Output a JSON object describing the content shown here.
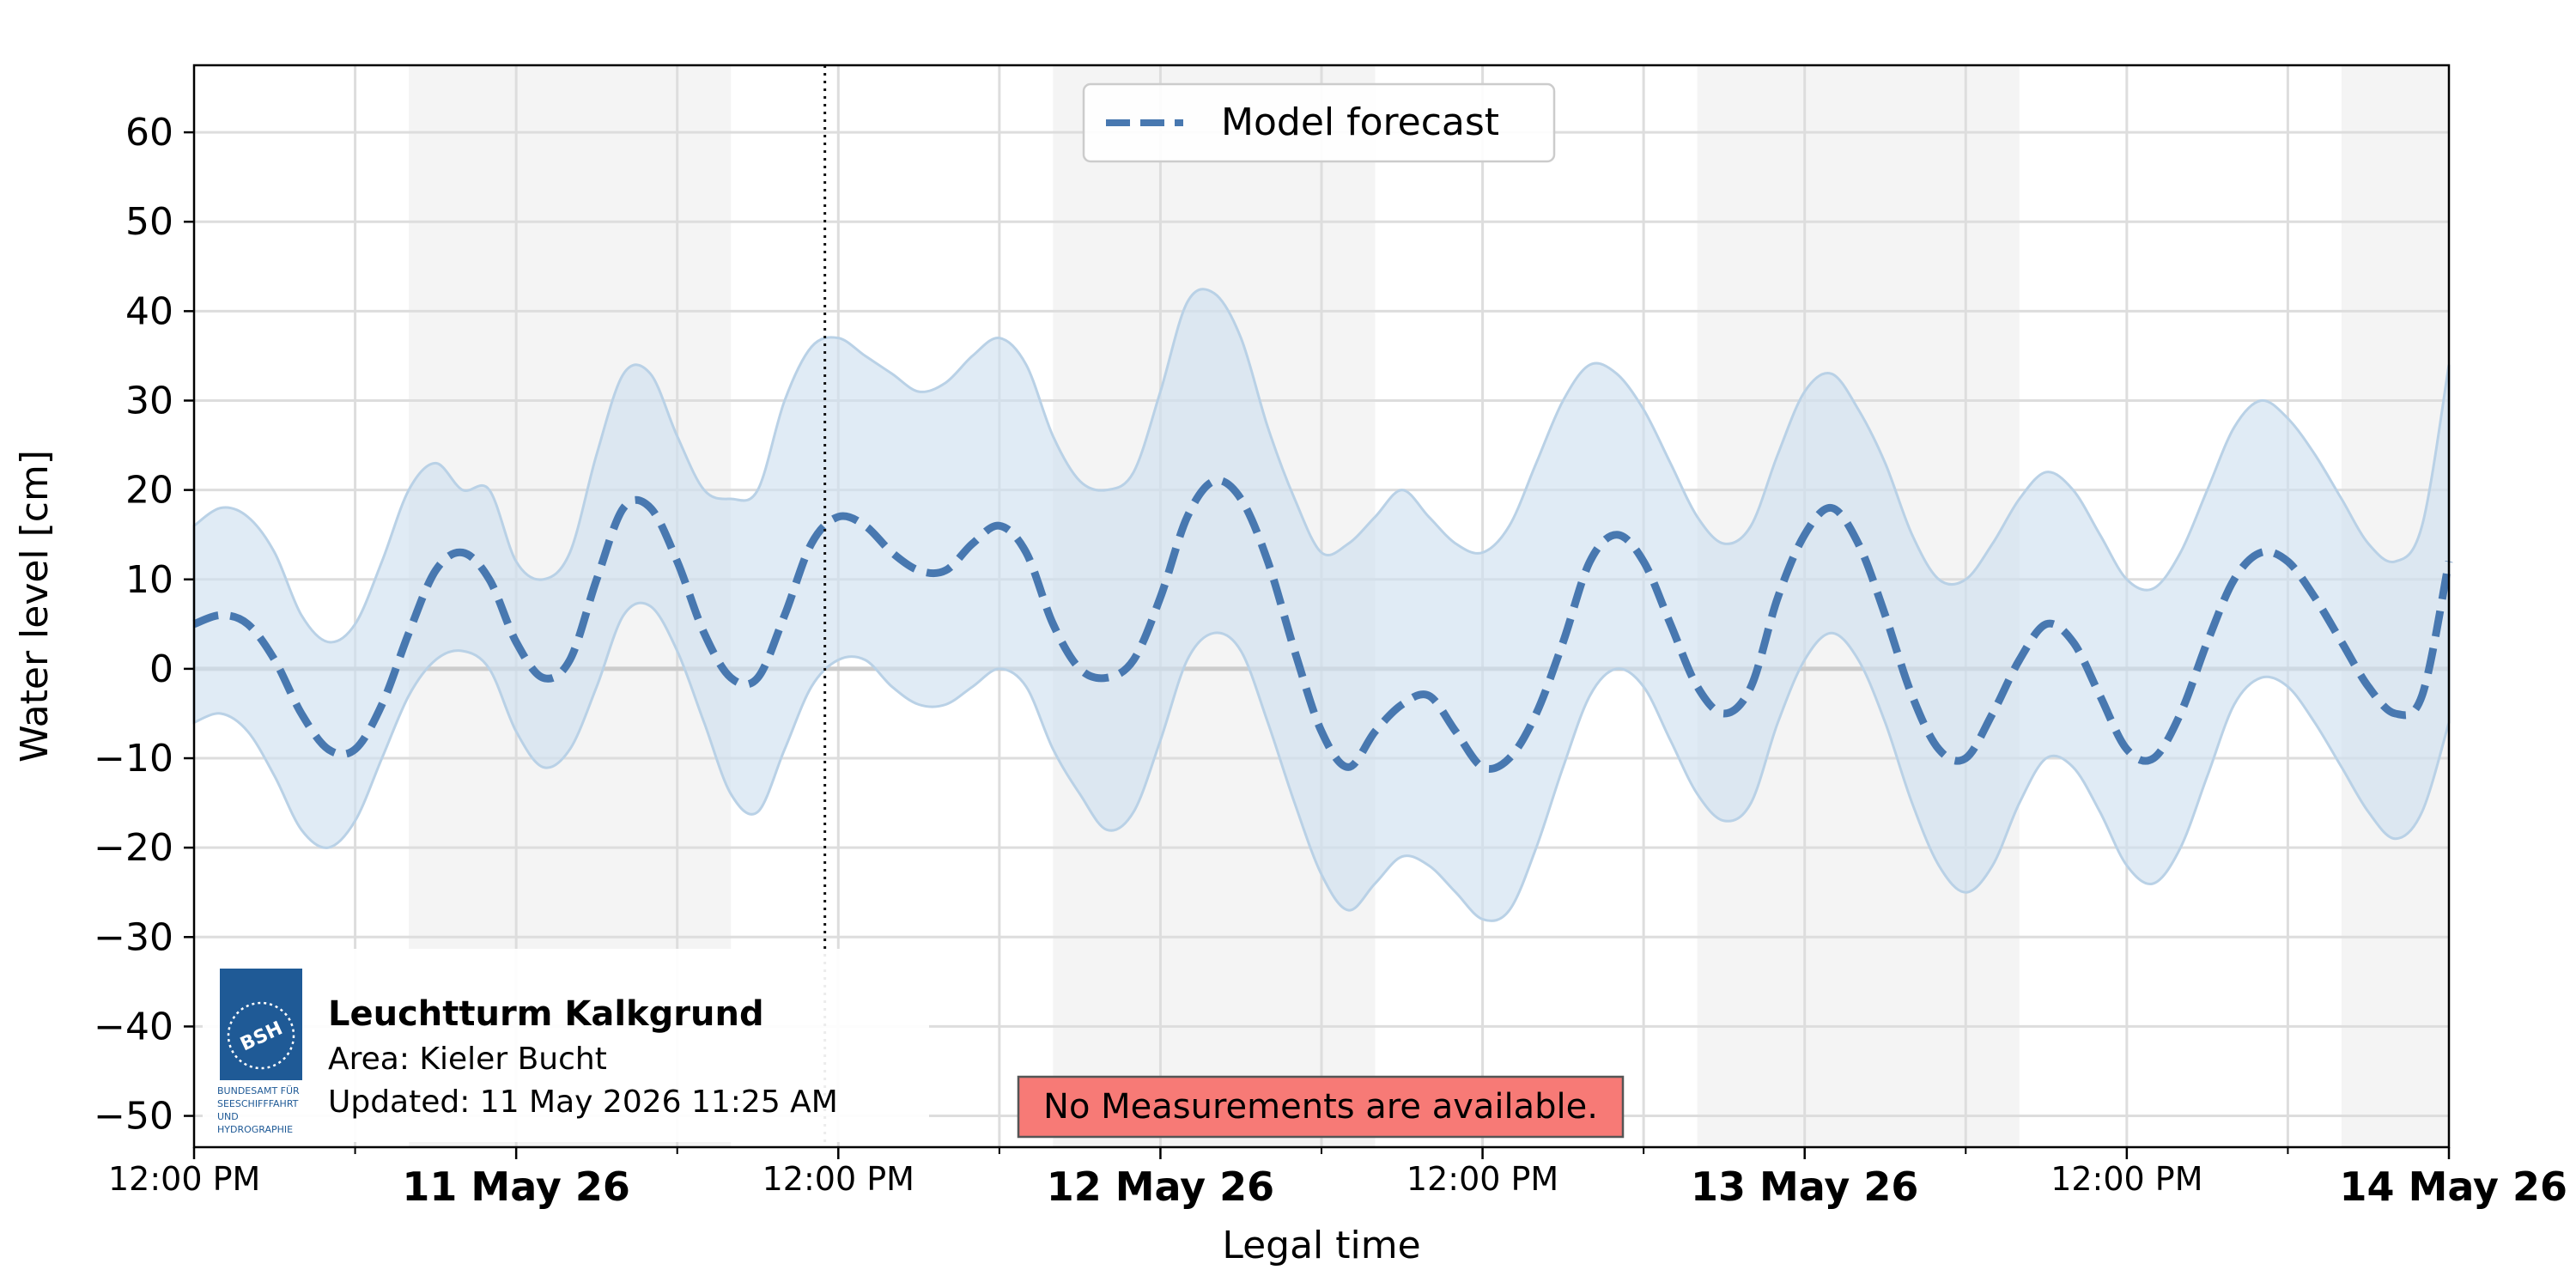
{
  "chart_data": {
    "type": "line",
    "xlabel": "Legal time",
    "ylabel": "Water level [cm]",
    "ylim": [
      -53.5,
      67.5
    ],
    "yticks": [
      -50,
      -40,
      -30,
      -20,
      -10,
      0,
      10,
      20,
      30,
      40,
      50,
      60
    ],
    "xlim_hours": [
      0,
      84
    ],
    "xticks": [
      {
        "label": "12:00 PM",
        "bold": false
      },
      {
        "label": "11 May 26",
        "bold": true
      },
      {
        "label": "12:00 PM",
        "bold": false
      },
      {
        "label": "12 May 26",
        "bold": true
      },
      {
        "label": "12:00 PM",
        "bold": false
      },
      {
        "label": "13 May 26",
        "bold": true
      },
      {
        "label": "12:00 PM",
        "bold": false
      },
      {
        "label": "14 May 26",
        "bold": true
      }
    ],
    "grid": true,
    "zero_line": true,
    "legend": {
      "placement": "top-center",
      "entries": [
        "Model forecast"
      ]
    },
    "series": [
      {
        "name": "Model forecast",
        "color": "#4878b0",
        "style": "dashed",
        "x": [
          0,
          1,
          2,
          3,
          4,
          5,
          6,
          7,
          8,
          9,
          10,
          11,
          12,
          13,
          14,
          15,
          16,
          17,
          18,
          19,
          20,
          21,
          22,
          23,
          24,
          25,
          26,
          27,
          28,
          29,
          30,
          31,
          32,
          33,
          34,
          35,
          36,
          37,
          38,
          39,
          40,
          41,
          42,
          43,
          44,
          45,
          46,
          47,
          48,
          49,
          50,
          51,
          52,
          53,
          54,
          55,
          56,
          57,
          58,
          59,
          60,
          61,
          62,
          63,
          64,
          65,
          66,
          67,
          68,
          69,
          70,
          71,
          72,
          73,
          74,
          75,
          76,
          77,
          78,
          79,
          80,
          81,
          82,
          83,
          84
        ],
        "values": [
          5,
          6,
          5,
          1,
          -5,
          -9,
          -9,
          -4,
          4,
          11,
          13,
          10,
          3,
          -1,
          1,
          10,
          18,
          18,
          12,
          4,
          -1,
          -1,
          6,
          14,
          17,
          16,
          13,
          11,
          11,
          14,
          16,
          13,
          5,
          0,
          -1,
          1,
          8,
          17,
          21,
          19,
          12,
          2,
          -7,
          -11,
          -7,
          -4,
          -3,
          -7,
          -11,
          -10,
          -5,
          3,
          12,
          15,
          12,
          5,
          -2,
          -5,
          -2,
          8,
          15,
          18,
          14,
          6,
          -3,
          -9,
          -10,
          -5,
          1,
          5,
          3,
          -3,
          -9,
          -10,
          -5,
          3,
          10,
          13,
          12,
          8,
          3,
          -2,
          -5,
          -3,
          12
        ]
      }
    ],
    "band": {
      "color": "#cfe0ef",
      "upper": [
        16,
        18,
        17,
        13,
        6,
        3,
        5,
        12,
        20,
        23,
        20,
        20,
        12,
        10,
        13,
        24,
        33,
        33,
        26,
        20,
        19,
        20,
        30,
        36,
        37,
        35,
        33,
        31,
        32,
        35,
        37,
        34,
        26,
        21,
        20,
        22,
        31,
        41,
        42,
        37,
        27,
        19,
        13,
        14,
        17,
        20,
        17,
        14,
        13,
        16,
        23,
        30,
        34,
        33,
        29,
        23,
        17,
        14,
        16,
        24,
        31,
        33,
        29,
        23,
        15,
        10,
        10,
        14,
        19,
        22,
        20,
        15,
        10,
        9,
        13,
        20,
        27,
        30,
        28,
        24,
        19,
        14,
        12,
        16,
        34
      ],
      "lower": [
        -6,
        -5,
        -7,
        -12,
        -18,
        -20,
        -17,
        -10,
        -3,
        1,
        2,
        0,
        -7,
        -11,
        -9,
        -2,
        6,
        7,
        2,
        -6,
        -14,
        -16,
        -9,
        -2,
        1,
        1,
        -2,
        -4,
        -4,
        -2,
        0,
        -2,
        -9,
        -14,
        -18,
        -16,
        -8,
        1,
        4,
        2,
        -6,
        -15,
        -23,
        -27,
        -24,
        -21,
        -22,
        -25,
        -28,
        -27,
        -20,
        -11,
        -3,
        0,
        -2,
        -8,
        -14,
        -17,
        -15,
        -6,
        1,
        4,
        1,
        -6,
        -15,
        -22,
        -25,
        -22,
        -15,
        -10,
        -11,
        -16,
        -22,
        -24,
        -20,
        -12,
        -4,
        -1,
        -2,
        -6,
        -11,
        -16,
        -19,
        -16,
        -6
      ]
    },
    "night_bands_hours": [
      [
        8,
        20
      ],
      [
        32,
        44
      ],
      [
        56,
        68
      ],
      [
        80,
        84
      ]
    ],
    "now_hour": 23.5
  },
  "station": {
    "name": "Leuchtturm Kalkgrund",
    "area": "Area: Kieler Bucht",
    "updated": "Updated: 11 May 2026 11:25 AM"
  },
  "logo": {
    "short": "BSH",
    "line1": "BUNDESAMT FÜR",
    "line2": "SEESCHIFFFAHRT",
    "line3": "UND",
    "line4": "HYDROGRAPHIE",
    "color": "#1f5a96"
  },
  "notice": {
    "text": "No Measurements are available.",
    "bg": "#f77a76"
  }
}
